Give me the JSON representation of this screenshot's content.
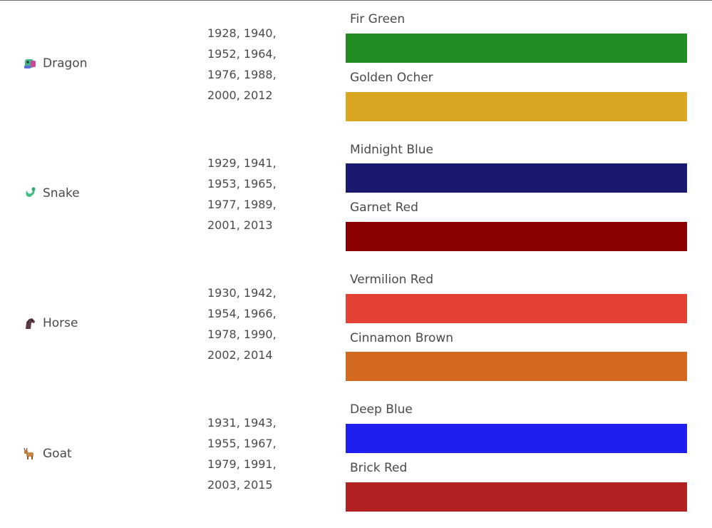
{
  "rows": [
    {
      "animal": "Dragon",
      "icon": "dragon-icon",
      "years": "1928, 1940, 1952, 1964, 1976, 1988, 2000, 2012",
      "colors": [
        {
          "name": "Fir Green",
          "hex": "#228b22"
        },
        {
          "name": "Golden Ocher",
          "hex": "#daa520"
        }
      ]
    },
    {
      "animal": "Snake",
      "icon": "snake-icon",
      "years": "1929, 1941, 1953, 1965, 1977, 1989, 2001, 2013",
      "colors": [
        {
          "name": "Midnight Blue",
          "hex": "#191970"
        },
        {
          "name": "Garnet Red",
          "hex": "#8b0000"
        }
      ]
    },
    {
      "animal": "Horse",
      "icon": "horse-icon",
      "years": "1930, 1942, 1954, 1966, 1978, 1990, 2002, 2014",
      "colors": [
        {
          "name": "Vermilion Red",
          "hex": "#e34234"
        },
        {
          "name": "Cinnamon Brown",
          "hex": "#d2691e"
        }
      ]
    },
    {
      "animal": "Goat",
      "icon": "goat-icon",
      "years": "1931, 1943, 1955, 1967, 1979, 1991, 2003, 2015",
      "colors": [
        {
          "name": "Deep Blue",
          "hex": "#1f1fef"
        },
        {
          "name": "Brick Red",
          "hex": "#b22222"
        }
      ]
    }
  ]
}
